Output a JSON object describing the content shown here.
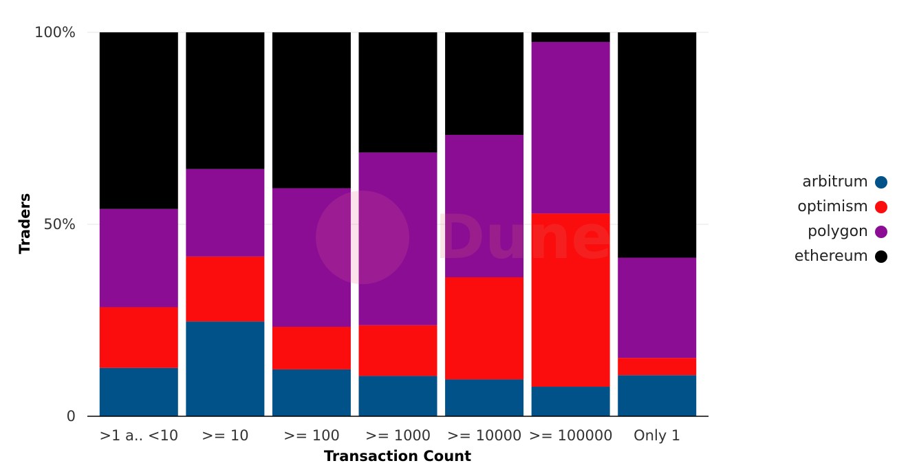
{
  "chart_data": {
    "type": "bar",
    "stacked": true,
    "normalized_percent": true,
    "xlabel": "Transaction Count",
    "ylabel": "Traders",
    "ylim": [
      0,
      100
    ],
    "y_ticks": [
      "0",
      "50%",
      "100%"
    ],
    "y_tick_values": [
      0,
      50,
      100
    ],
    "categories": [
      ">1 a.. <10",
      ">= 10",
      ">= 100",
      ">= 1000",
      ">= 10000",
      ">= 100000",
      "Only 1"
    ],
    "series": [
      {
        "name": "arbitrum",
        "color": "#005288",
        "values": [
          12.6,
          24.7,
          12.2,
          10.5,
          9.6,
          7.7,
          10.7
        ]
      },
      {
        "name": "optimism",
        "color": "#fb0d0d",
        "values": [
          15.8,
          16.9,
          11.1,
          13.2,
          26.6,
          45.1,
          4.5
        ]
      },
      {
        "name": "polygon",
        "color": "#8a0d94",
        "values": [
          25.6,
          22.8,
          36.1,
          45.0,
          37.1,
          44.7,
          26.1
        ]
      },
      {
        "name": "ethereum",
        "color": "#000000",
        "values": [
          46.0,
          35.6,
          40.6,
          31.3,
          26.7,
          2.5,
          58.7
        ]
      }
    ],
    "legend_position": "right",
    "grid": true
  },
  "watermark": {
    "text": "Dune"
  }
}
